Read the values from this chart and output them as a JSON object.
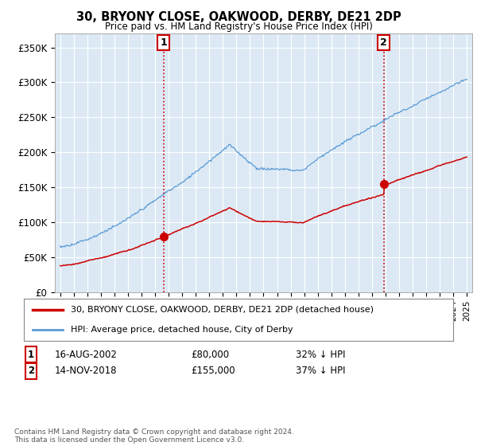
{
  "title": "30, BRYONY CLOSE, OAKWOOD, DERBY, DE21 2DP",
  "subtitle": "Price paid vs. HM Land Registry's House Price Index (HPI)",
  "ylim": [
    0,
    370000
  ],
  "yticks": [
    0,
    50000,
    100000,
    150000,
    200000,
    250000,
    300000,
    350000
  ],
  "ytick_labels": [
    "£0",
    "£50K",
    "£100K",
    "£150K",
    "£200K",
    "£250K",
    "£300K",
    "£350K"
  ],
  "sale1": {
    "date_num": 2002.62,
    "price": 80000,
    "label": "1",
    "date_str": "16-AUG-2002",
    "pct": "32% ↓ HPI"
  },
  "sale2": {
    "date_num": 2018.87,
    "price": 155000,
    "label": "2",
    "date_str": "14-NOV-2018",
    "pct": "37% ↓ HPI"
  },
  "line_color_house": "#cc0000",
  "line_color_hpi": "#5b9bd5",
  "plot_bg_color": "#dce9f5",
  "legend_house": "30, BRYONY CLOSE, OAKWOOD, DERBY, DE21 2DP (detached house)",
  "legend_hpi": "HPI: Average price, detached house, City of Derby",
  "footnote": "Contains HM Land Registry data © Crown copyright and database right 2024.\nThis data is licensed under the Open Government Licence v3.0.",
  "background_color": "#ffffff",
  "grid_color": "#ffffff",
  "xtick_start": 1995,
  "xtick_end": 2025
}
